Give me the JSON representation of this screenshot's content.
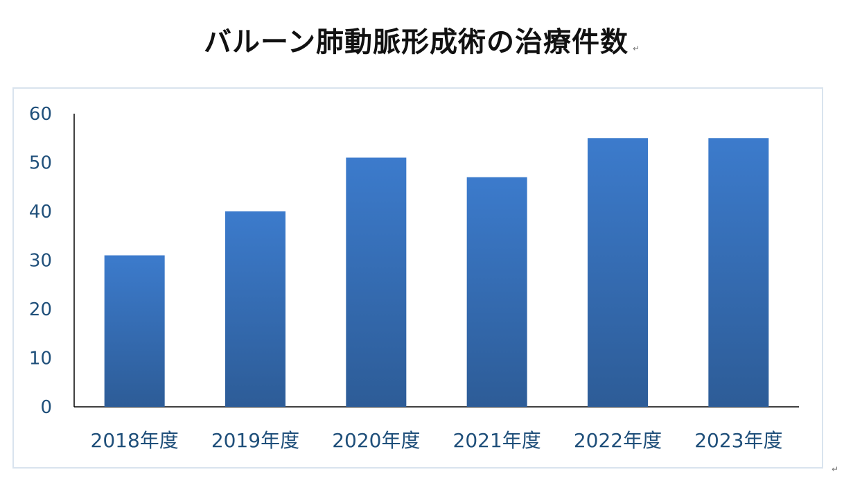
{
  "chart_data": {
    "type": "bar",
    "title": "バルーン肺動脈形成術の治療件数",
    "categories": [
      "2018年度",
      "2019年度",
      "2020年度",
      "2021年度",
      "2022年度",
      "2023年度"
    ],
    "values": [
      31,
      40,
      51,
      47,
      55,
      55
    ],
    "ylim": [
      0,
      60
    ],
    "yticks": [
      0,
      10,
      20,
      30,
      40,
      50,
      60
    ],
    "xlabel": "",
    "ylabel": "",
    "grid": false,
    "legend": "none",
    "colors": {
      "bar_top": "#3c7bcc",
      "bar_bottom": "#2d5c97",
      "axis": "#000000",
      "label": "#1f4f7a"
    }
  },
  "marks": {
    "title_mark": "↵",
    "corner_mark": "↵"
  }
}
